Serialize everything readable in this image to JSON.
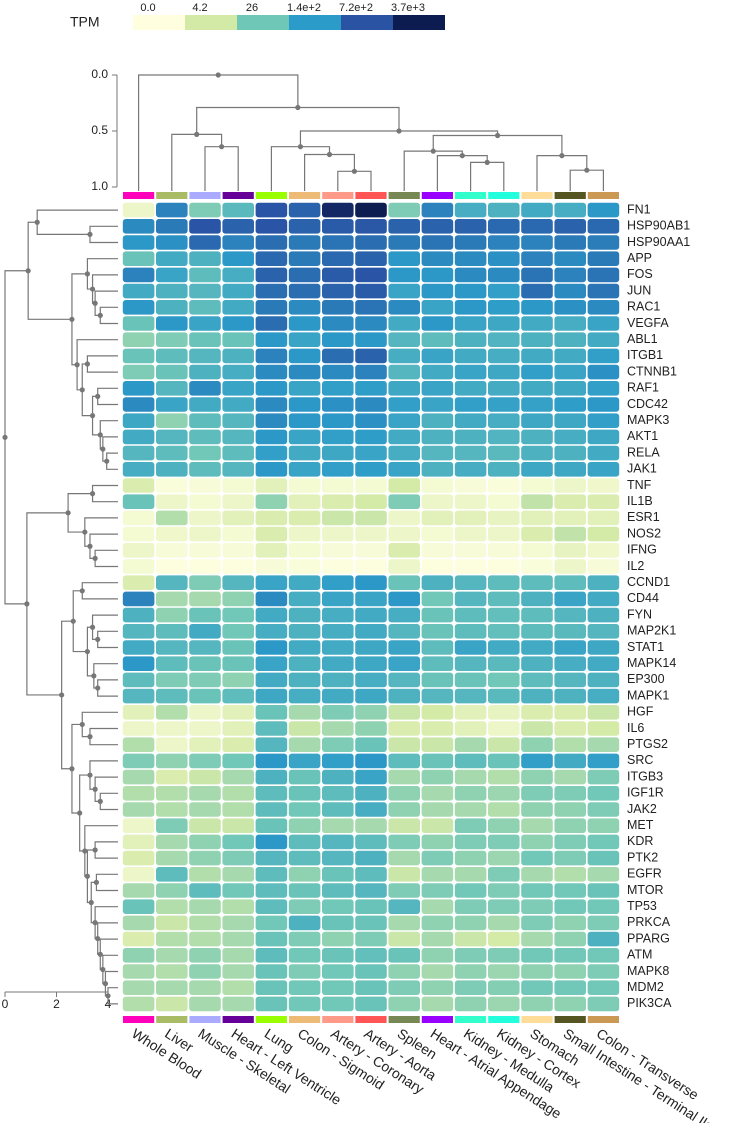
{
  "chart_data": {
    "type": "heatmap",
    "colorbar": {
      "title": "TPM",
      "ticks": [
        {
          "value": 0,
          "label": "0.0"
        },
        4.2,
        26,
        {
          "value": 140,
          "label": "1.4e+2"
        },
        {
          "value": 720,
          "label": "7.2e+2"
        },
        {
          "value": 3700,
          "label": "3.7e+3"
        }
      ],
      "colors": [
        "#ffffe0",
        "#d3e9a6",
        "#6fc7b8",
        "#2b9bc9",
        "#2a53a4",
        "#0c1b50"
      ]
    },
    "x": [
      "Whole Blood",
      "Liver",
      "Muscle - Skeletal",
      "Heart - Left Ventricle",
      "Lung",
      "Colon - Sigmoid",
      "Artery - Coronary",
      "Artery - Aorta",
      "Spleen",
      "Heart - Atrial Appendage",
      "Kidney - Medulla",
      "Kidney - Cortex",
      "Stomach",
      "Small Intestine - Terminal Ileum",
      "Colon - Transverse"
    ],
    "x_colors": [
      "#ff00bb",
      "#aabb66",
      "#aaaaff",
      "#660099",
      "#99ff00",
      "#eebb77",
      "#ff9988",
      "#ff5555",
      "#778855",
      "#9900ff",
      "#33ffcc",
      "#22ffdd",
      "#ffdd99",
      "#555522",
      "#cc9955"
    ],
    "y": [
      "FN1",
      "HSP90AB1",
      "HSP90AA1",
      "APP",
      "FOS",
      "JUN",
      "RAC1",
      "VEGFA",
      "ABL1",
      "ITGB1",
      "CTNNB1",
      "RAF1",
      "CDC42",
      "MAPK3",
      "AKT1",
      "RELA",
      "JAK1",
      "TNF",
      "IL1B",
      "ESR1",
      "NOS2",
      "IFNG",
      "IL2",
      "CCND1",
      "CD44",
      "FYN",
      "MAP2K1",
      "STAT1",
      "MAPK14",
      "EP300",
      "MAPK1",
      "HGF",
      "IL6",
      "PTGS2",
      "SRC",
      "ITGB3",
      "IGF1R",
      "JAK2",
      "MET",
      "KDR",
      "PTK2",
      "EGFR",
      "MTOR",
      "TP53",
      "PRKCA",
      "PPARG",
      "ATM",
      "MAPK8",
      "MDM2",
      "PIK3CA"
    ],
    "values": [
      [
        1,
        250,
        20,
        45,
        700,
        500,
        2500,
        3600,
        20,
        250,
        70,
        60,
        80,
        70,
        150
      ],
      [
        200,
        300,
        700,
        500,
        700,
        500,
        600,
        650,
        500,
        500,
        500,
        450,
        450,
        500,
        450
      ],
      [
        150,
        180,
        450,
        250,
        400,
        300,
        350,
        400,
        300,
        350,
        300,
        250,
        250,
        300,
        280
      ],
      [
        30,
        80,
        60,
        150,
        450,
        300,
        450,
        500,
        150,
        200,
        200,
        180,
        250,
        200,
        300
      ],
      [
        250,
        100,
        40,
        70,
        500,
        400,
        600,
        700,
        150,
        150,
        200,
        200,
        350,
        250,
        350
      ],
      [
        80,
        60,
        50,
        80,
        400,
        400,
        500,
        600,
        100,
        150,
        150,
        120,
        400,
        200,
        350
      ],
      [
        150,
        60,
        40,
        80,
        300,
        200,
        300,
        350,
        200,
        100,
        150,
        130,
        150,
        180,
        200
      ],
      [
        30,
        150,
        100,
        150,
        400,
        150,
        200,
        200,
        80,
        150,
        100,
        90,
        80,
        70,
        100
      ],
      [
        15,
        20,
        30,
        30,
        150,
        100,
        150,
        150,
        50,
        40,
        60,
        55,
        60,
        60,
        80
      ],
      [
        30,
        40,
        50,
        60,
        250,
        150,
        400,
        500,
        70,
        100,
        80,
        70,
        80,
        80,
        120
      ],
      [
        20,
        30,
        60,
        70,
        200,
        200,
        200,
        250,
        50,
        80,
        100,
        90,
        120,
        100,
        180
      ],
      [
        150,
        50,
        200,
        100,
        150,
        100,
        120,
        130,
        90,
        100,
        80,
        75,
        80,
        90,
        120
      ],
      [
        200,
        100,
        80,
        80,
        200,
        150,
        180,
        200,
        120,
        100,
        120,
        110,
        110,
        130,
        150
      ],
      [
        90,
        15,
        40,
        50,
        200,
        150,
        150,
        180,
        100,
        60,
        80,
        70,
        90,
        90,
        120
      ],
      [
        80,
        50,
        40,
        50,
        150,
        100,
        120,
        130,
        80,
        60,
        60,
        55,
        60,
        70,
        90
      ],
      [
        50,
        40,
        25,
        40,
        120,
        80,
        90,
        100,
        70,
        50,
        50,
        45,
        60,
        60,
        80
      ],
      [
        70,
        60,
        40,
        50,
        150,
        100,
        120,
        130,
        100,
        60,
        70,
        60,
        90,
        90,
        100
      ],
      [
        3,
        0.2,
        0.3,
        0.5,
        2,
        0.5,
        0.5,
        0.5,
        4,
        0.5,
        0.3,
        0.2,
        0.5,
        1,
        0.8
      ],
      [
        30,
        1,
        0.5,
        1,
        15,
        2,
        3,
        4,
        20,
        1,
        1,
        0.5,
        6,
        3,
        3
      ],
      [
        0.5,
        8,
        1,
        2,
        3,
        3,
        5,
        5,
        1,
        2,
        2,
        1.5,
        2,
        2,
        2
      ],
      [
        0.5,
        0.8,
        1,
        0.5,
        3,
        1,
        1,
        1,
        1,
        0.5,
        1,
        1,
        3,
        6,
        4
      ],
      [
        1,
        0.3,
        0.3,
        0.3,
        2,
        0.5,
        0.3,
        0.3,
        3,
        0.3,
        0.3,
        0.3,
        0.5,
        1.5,
        0.8
      ],
      [
        0.5,
        0.1,
        0.1,
        0.1,
        0.3,
        0.2,
        0.1,
        0.1,
        1,
        0.1,
        0.1,
        0.1,
        0.2,
        1,
        0.3
      ],
      [
        3,
        50,
        20,
        50,
        100,
        80,
        120,
        150,
        30,
        60,
        50,
        40,
        40,
        40,
        60
      ],
      [
        250,
        10,
        10,
        15,
        200,
        70,
        100,
        100,
        150,
        25,
        50,
        40,
        60,
        100,
        80
      ],
      [
        60,
        15,
        30,
        25,
        80,
        60,
        70,
        80,
        70,
        30,
        40,
        35,
        40,
        50,
        60
      ],
      [
        50,
        40,
        80,
        25,
        70,
        60,
        70,
        80,
        50,
        30,
        40,
        35,
        40,
        45,
        50
      ],
      [
        80,
        50,
        50,
        30,
        150,
        80,
        80,
        90,
        100,
        40,
        100,
        80,
        80,
        100,
        90
      ],
      [
        150,
        40,
        30,
        30,
        100,
        60,
        80,
        90,
        100,
        40,
        50,
        45,
        60,
        70,
        80
      ],
      [
        40,
        20,
        20,
        15,
        80,
        60,
        60,
        70,
        50,
        30,
        30,
        25,
        40,
        50,
        60
      ],
      [
        50,
        40,
        30,
        40,
        90,
        70,
        80,
        90,
        60,
        50,
        50,
        45,
        60,
        60,
        70
      ],
      [
        2,
        8,
        1,
        2,
        30,
        10,
        20,
        15,
        5,
        4,
        2,
        1.5,
        3,
        3,
        5
      ],
      [
        1,
        1,
        1,
        2,
        40,
        5,
        10,
        15,
        3,
        3,
        2,
        1,
        5,
        3,
        4
      ],
      [
        8,
        1,
        2,
        3,
        50,
        10,
        20,
        30,
        5,
        5,
        10,
        5,
        15,
        8,
        10
      ],
      [
        20,
        15,
        20,
        25,
        150,
        100,
        120,
        150,
        40,
        30,
        40,
        30,
        120,
        80,
        120
      ],
      [
        10,
        3,
        5,
        10,
        60,
        30,
        60,
        100,
        10,
        15,
        10,
        8,
        15,
        10,
        20
      ],
      [
        8,
        8,
        10,
        8,
        40,
        30,
        40,
        60,
        15,
        10,
        15,
        12,
        20,
        20,
        25
      ],
      [
        10,
        8,
        10,
        8,
        40,
        25,
        40,
        70,
        15,
        10,
        10,
        8,
        15,
        15,
        20
      ],
      [
        1,
        20,
        5,
        5,
        30,
        15,
        10,
        10,
        5,
        5,
        20,
        15,
        10,
        15,
        15
      ],
      [
        2,
        10,
        15,
        25,
        150,
        40,
        50,
        40,
        20,
        15,
        20,
        20,
        15,
        20,
        25
      ],
      [
        3,
        10,
        15,
        20,
        50,
        40,
        50,
        60,
        10,
        20,
        15,
        12,
        25,
        20,
        30
      ],
      [
        1,
        40,
        8,
        10,
        40,
        15,
        30,
        40,
        5,
        10,
        10,
        20,
        10,
        8,
        10
      ],
      [
        10,
        15,
        40,
        25,
        40,
        30,
        40,
        50,
        20,
        20,
        25,
        20,
        25,
        25,
        30
      ],
      [
        30,
        8,
        10,
        8,
        40,
        20,
        25,
        30,
        50,
        10,
        20,
        20,
        20,
        25,
        25
      ],
      [
        10,
        5,
        8,
        10,
        25,
        60,
        30,
        30,
        10,
        15,
        15,
        10,
        20,
        15,
        20
      ],
      [
        3,
        8,
        8,
        10,
        30,
        20,
        15,
        20,
        5,
        10,
        5,
        4,
        10,
        15,
        60
      ],
      [
        15,
        10,
        15,
        10,
        40,
        25,
        30,
        35,
        30,
        15,
        20,
        20,
        25,
        25,
        25
      ],
      [
        10,
        8,
        15,
        10,
        30,
        20,
        25,
        30,
        15,
        10,
        15,
        12,
        15,
        15,
        20
      ],
      [
        10,
        10,
        10,
        8,
        30,
        25,
        25,
        30,
        20,
        15,
        20,
        18,
        25,
        25,
        25
      ],
      [
        8,
        5,
        10,
        10,
        30,
        25,
        25,
        30,
        15,
        10,
        15,
        12,
        15,
        15,
        20
      ]
    ],
    "col_dendrogram": {
      "ylim": [
        0,
        1
      ],
      "yticks": [
        {
          "value": 0,
          "label": "0.0"
        },
        0.5,
        {
          "value": 1,
          "label": "1.0"
        }
      ],
      "tree": [
        0,
        0,
        [
          0.29,
          [
            0.53,
            1,
            [
              0.64,
              2,
              3
            ]
          ],
          [
            0.5,
            [
              0.64,
              4,
              [
                0.71,
                5,
                [
                  0.86,
                  6,
                  7
                ]
              ]
            ],
            [
              0.54,
              [
                0.68,
                8,
                [
                  0.72,
                  9,
                  [
                    0.78,
                    10,
                    11
                  ]
                ]
              ],
              [
                0.72,
                12,
                [
                  0.85,
                  13,
                  14
                ]
              ]
            ]
          ]
        ]
      ]
    },
    "row_dendrogram": {
      "xlim": [
        0,
        4
      ],
      "xticks": [
        0,
        2,
        4
      ],
      "tree": [
        0,
        [
          0.9,
          [
            1.25,
            0,
            [
              3.3,
              1,
              2
            ]
          ],
          [
            2.6,
            [
              3.2,
              3,
              [
                3.4,
                4,
                [
                  3.5,
                  5,
                  [
                    3.7,
                    6,
                    7
                  ]
                ]
              ]
            ],
            [
              2.8,
              8,
              [
                3.0,
                [
                  3.2,
                  9,
                  10
                ],
                [
                  3.4,
                  [
                    3.6,
                    11,
                    12
                  ],
                  [
                    3.7,
                    13,
                    [
                      3.8,
                      14,
                      [
                        3.95,
                        15,
                        16
                      ]
                    ]
                  ]
                ]
              ]
            ]
          ]
        ],
        [
          0.85,
          [
            2.45,
            [
              3.4,
              17,
              18
            ],
            [
              3.1,
              19,
              [
                3.3,
                20,
                [
                  3.5,
                  21,
                  22
                ]
              ]
            ]
          ],
          [
            2.2,
            [
              2.65,
              [
                3.0,
                23,
                24
              ],
              [
                3.2,
                [
                  3.4,
                  25,
                  [
                    3.6,
                    26,
                    27
                  ]
                ],
                [
                  3.45,
                  28,
                  [
                    3.6,
                    29,
                    30
                  ]
                ]
              ]
            ],
            [
              2.6,
              [
                3.0,
                31,
                [
                  3.3,
                  32,
                  33
                ]
              ],
              [
                2.9,
                [
                  3.3,
                  34,
                  [
                    3.5,
                    35,
                    [
                      3.7,
                      36,
                      37
                    ]
                  ]
                ],
                [
                  3.1,
                  38,
                  [
                    3.2,
                    [
                      3.5,
                      39,
                      40
                    ],
                    [
                      3.35,
                      [
                        3.55,
                        41,
                        42
                      ],
                      [
                        3.5,
                        43,
                        [
                          3.6,
                          44,
                          [
                            3.7,
                            45,
                            [
                              3.8,
                              46,
                              [
                                3.9,
                                47,
                                [
                                  4.0,
                                  48,
                                  49
                                ]
                              ]
                            ]
                          ]
                        ]
                      ]
                    ]
                  ]
                ]
              ]
            ]
          ]
        ]
      ]
    }
  }
}
